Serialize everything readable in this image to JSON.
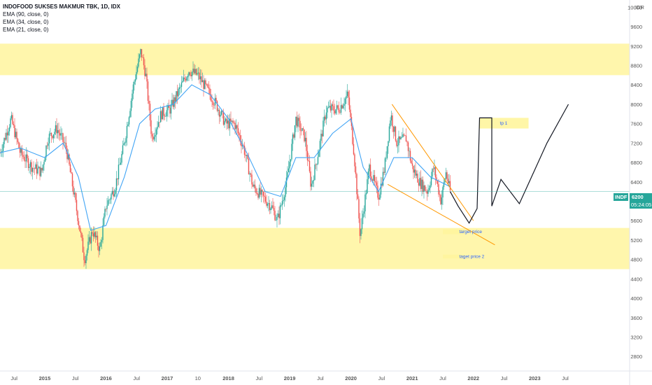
{
  "header": {
    "title": "INDOFOOD SUKSES MAKMUR TBK, 1D, IDX",
    "indicators": [
      "EMA (90, close, 0)",
      "EMA (34, close, 0)",
      "EMA (21, close, 0)"
    ]
  },
  "chart_data": {
    "type": "candlestick",
    "symbol": "INDF",
    "currency": "IDR",
    "last_price": "6200",
    "countdown": "05:24:05",
    "y_ticks": [
      10000,
      9600,
      9200,
      8800,
      8400,
      8000,
      7600,
      7200,
      6800,
      6400,
      6000,
      5600,
      5200,
      4800,
      4400,
      4000,
      3600,
      3200,
      2800
    ],
    "x_ticks": [
      {
        "t": 2014.5,
        "label": "Jul"
      },
      {
        "t": 2015.0,
        "label": "2015"
      },
      {
        "t": 2015.5,
        "label": "Jul"
      },
      {
        "t": 2016.0,
        "label": "2016"
      },
      {
        "t": 2016.5,
        "label": "Jul"
      },
      {
        "t": 2017.0,
        "label": "2017"
      },
      {
        "t": 2017.5,
        "label": "10"
      },
      {
        "t": 2018.0,
        "label": "2018"
      },
      {
        "t": 2018.5,
        "label": "Jul"
      },
      {
        "t": 2019.0,
        "label": "2019"
      },
      {
        "t": 2019.5,
        "label": "Jul"
      },
      {
        "t": 2020.0,
        "label": "2020"
      },
      {
        "t": 2020.5,
        "label": "Jul"
      },
      {
        "t": 2021.0,
        "label": "2021"
      },
      {
        "t": 2021.5,
        "label": "Jul"
      },
      {
        "t": 2022.0,
        "label": "2022"
      },
      {
        "t": 2022.5,
        "label": "Jul"
      },
      {
        "t": 2023.0,
        "label": "2023"
      },
      {
        "t": 2023.5,
        "label": "Jul"
      }
    ],
    "x_range": [
      2014.27,
      2024.55
    ],
    "y_range": [
      2500,
      10150
    ],
    "price_path": [
      [
        2014.27,
        7000
      ],
      [
        2014.45,
        7700
      ],
      [
        2014.6,
        7000
      ],
      [
        2014.8,
        6700
      ],
      [
        2014.95,
        6600
      ],
      [
        2015.05,
        7300
      ],
      [
        2015.2,
        7500
      ],
      [
        2015.35,
        7100
      ],
      [
        2015.55,
        5600
      ],
      [
        2015.65,
        4800
      ],
      [
        2015.78,
        5400
      ],
      [
        2015.9,
        5000
      ],
      [
        2016.0,
        5900
      ],
      [
        2016.15,
        6300
      ],
      [
        2016.3,
        7200
      ],
      [
        2016.45,
        8400
      ],
      [
        2016.57,
        9100
      ],
      [
        2016.65,
        8600
      ],
      [
        2016.75,
        7300
      ],
      [
        2016.9,
        7800
      ],
      [
        2017.05,
        7900
      ],
      [
        2017.2,
        8300
      ],
      [
        2017.35,
        8700
      ],
      [
        2017.5,
        8600
      ],
      [
        2017.65,
        8300
      ],
      [
        2017.8,
        8000
      ],
      [
        2017.95,
        7600
      ],
      [
        2018.1,
        7600
      ],
      [
        2018.25,
        7100
      ],
      [
        2018.4,
        6300
      ],
      [
        2018.55,
        6100
      ],
      [
        2018.7,
        5900
      ],
      [
        2018.8,
        5600
      ],
      [
        2018.95,
        6400
      ],
      [
        2019.1,
        7700
      ],
      [
        2019.25,
        7300
      ],
      [
        2019.35,
        6300
      ],
      [
        2019.45,
        6900
      ],
      [
        2019.6,
        7900
      ],
      [
        2019.8,
        7900
      ],
      [
        2019.95,
        8200
      ],
      [
        2020.05,
        7000
      ],
      [
        2020.15,
        5300
      ],
      [
        2020.3,
        6700
      ],
      [
        2020.45,
        6100
      ],
      [
        2020.55,
        6700
      ],
      [
        2020.65,
        7800
      ],
      [
        2020.75,
        7200
      ],
      [
        2020.9,
        7300
      ],
      [
        2021.0,
        6700
      ],
      [
        2021.12,
        6400
      ],
      [
        2021.25,
        6200
      ],
      [
        2021.35,
        6700
      ],
      [
        2021.47,
        6000
      ],
      [
        2021.55,
        6600
      ],
      [
        2021.62,
        6200
      ]
    ],
    "ema_path": [
      [
        2014.27,
        7000
      ],
      [
        2014.6,
        7100
      ],
      [
        2015.0,
        6900
      ],
      [
        2015.3,
        7200
      ],
      [
        2015.55,
        6500
      ],
      [
        2015.75,
        5400
      ],
      [
        2016.0,
        5500
      ],
      [
        2016.3,
        6500
      ],
      [
        2016.55,
        7600
      ],
      [
        2016.8,
        7900
      ],
      [
        2017.1,
        8000
      ],
      [
        2017.4,
        8400
      ],
      [
        2017.7,
        8200
      ],
      [
        2018.0,
        7700
      ],
      [
        2018.3,
        7000
      ],
      [
        2018.6,
        6200
      ],
      [
        2018.85,
        6100
      ],
      [
        2019.1,
        6900
      ],
      [
        2019.4,
        6900
      ],
      [
        2019.7,
        7400
      ],
      [
        2020.0,
        7700
      ],
      [
        2020.2,
        6700
      ],
      [
        2020.45,
        6200
      ],
      [
        2020.7,
        6900
      ],
      [
        2021.0,
        6900
      ],
      [
        2021.3,
        6500
      ],
      [
        2021.62,
        6300
      ]
    ],
    "zones": [
      {
        "y0": 8600,
        "y1": 9250,
        "color": "#fff59d"
      },
      {
        "y0": 4600,
        "y1": 5450,
        "color": "#fff59d"
      }
    ],
    "boxes": [
      {
        "x0": 2022.1,
        "x1": 2022.9,
        "y0": 7500,
        "y1": 7720,
        "color": "#fff59d",
        "label": "tp 1"
      },
      {
        "x0": 2021.5,
        "x1": 2021.86,
        "y0": 5320,
        "y1": 5420,
        "color": "#fff59d",
        "label": "target price"
      },
      {
        "x0": 2021.5,
        "x1": 2021.86,
        "y0": 4820,
        "y1": 4900,
        "color": "#fff59d",
        "label": "taget price 2"
      }
    ],
    "trendlines": [
      {
        "from": [
          2020.67,
          8000
        ],
        "to": [
          2022.0,
          5600
        ],
        "color": "#ff9800"
      },
      {
        "from": [
          2020.6,
          6350
        ],
        "to": [
          2022.35,
          5100
        ],
        "color": "#ff9800"
      }
    ],
    "projection": [
      [
        2021.62,
        6200
      ],
      [
        2021.75,
        5900
      ],
      [
        2021.93,
        5550
      ],
      [
        2022.06,
        5850
      ],
      [
        2022.1,
        7720
      ],
      [
        2022.3,
        7720
      ],
      [
        2022.3,
        5900
      ],
      [
        2022.45,
        6450
      ],
      [
        2022.75,
        5950
      ],
      [
        2023.2,
        7200
      ],
      [
        2023.55,
        8000
      ]
    ],
    "last_line_y": 6200,
    "colors": {
      "up": "#26a69a",
      "down": "#ef5350",
      "ema": "#42a5f5",
      "projection": "#131722",
      "trend": "#ff9800",
      "zone": "#fff59d",
      "tag_bg": "#26a69a"
    }
  }
}
